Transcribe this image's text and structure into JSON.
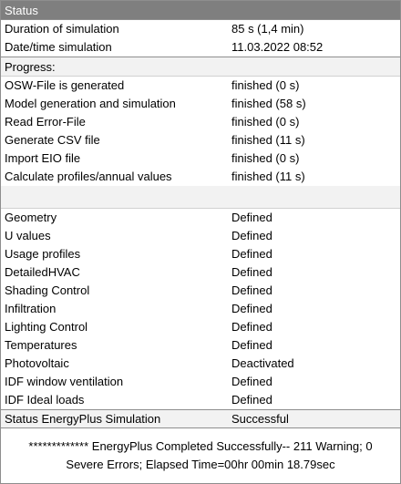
{
  "header": {
    "title": "Status"
  },
  "simulation": [
    {
      "label": "Duration of simulation",
      "value": "85 s (1,4 min)"
    },
    {
      "label": "Date/time simulation",
      "value": "11.03.2022 08:52"
    }
  ],
  "progress": {
    "label": "Progress:",
    "items": [
      {
        "label": "OSW-File is generated",
        "value": "finished (0 s)"
      },
      {
        "label": "Model generation and simulation",
        "value": "finished (58 s)"
      },
      {
        "label": "Read Error-File",
        "value": "finished (0 s)"
      },
      {
        "label": "Generate CSV file",
        "value": "finished (11 s)"
      },
      {
        "label": "Import EIO file",
        "value": "finished (0 s)"
      },
      {
        "label": "Calculate profiles/annual values",
        "value": "finished (11 s)"
      }
    ]
  },
  "components": [
    {
      "label": "Geometry",
      "value": "Defined"
    },
    {
      "label": "U values",
      "value": "Defined"
    },
    {
      "label": "Usage profiles",
      "value": "Defined"
    },
    {
      "label": "DetailedHVAC",
      "value": "Defined"
    },
    {
      "label": "Shading Control",
      "value": "Defined"
    },
    {
      "label": "Infiltration",
      "value": "Defined"
    },
    {
      "label": "Lighting Control",
      "value": "Defined"
    },
    {
      "label": "Temperatures",
      "value": "Defined"
    },
    {
      "label": "Photovoltaic",
      "value": "Deactivated"
    },
    {
      "label": "IDF window ventilation",
      "value": "Defined"
    },
    {
      "label": "IDF Ideal loads",
      "value": "Defined"
    }
  ],
  "status": {
    "label": "Status EnergyPlus Simulation",
    "value": "Successful"
  },
  "message": {
    "line1": "************* EnergyPlus Completed Successfully-- 211 Warning; 0",
    "line2": "Severe Errors; Elapsed Time=00hr 00min 18.79sec"
  }
}
